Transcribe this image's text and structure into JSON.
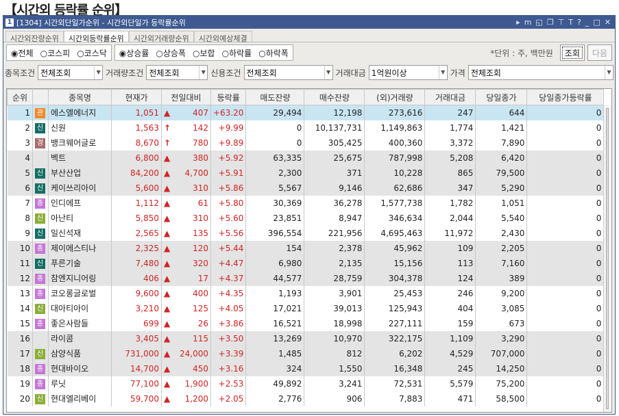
{
  "page_title": "【시간외 등락률 순위】",
  "window": {
    "number": "1",
    "title": "[1304] 시간외단일가순위 - 시간외단일가 등락률순위",
    "icons": [
      "play-icon",
      "m-icon",
      "restore-icon",
      "copy-icon",
      "pin-icon",
      "font-icon",
      "help-icon",
      "minimize-icon",
      "maximize-icon",
      "close-icon"
    ]
  },
  "tabs": [
    {
      "label": "시간외잔량순위"
    },
    {
      "label": "시간외등락률순위",
      "active": true
    },
    {
      "label": "시간외거래량순위"
    },
    {
      "label": "시간외예상체결"
    }
  ],
  "market_radios": [
    {
      "label": "전체",
      "checked": true
    },
    {
      "label": "코스피"
    },
    {
      "label": "코스닥"
    }
  ],
  "sort_radios": [
    {
      "label": "상승률",
      "checked": true
    },
    {
      "label": "상승폭"
    },
    {
      "label": "보합"
    },
    {
      "label": "하락률"
    },
    {
      "label": "하락폭"
    }
  ],
  "unit_text": "*단위 : 주, 백만원",
  "search_button": "조회",
  "next_button": "다음",
  "filters": [
    {
      "label": "종목조건",
      "value": "전체조회"
    },
    {
      "label": "거래량조건",
      "value": "전체조회"
    },
    {
      "label": "신용조건",
      "value": "전체조회"
    },
    {
      "label": "거래대금",
      "value": "1억원이상"
    },
    {
      "label": "가격",
      "value": "전체조회"
    }
  ],
  "columns": [
    "순위",
    "",
    "종목명",
    "현재가",
    "전일대비",
    "등락률",
    "매도잔량",
    "매수잔량",
    "(외)거래량",
    "거래대금",
    "당일종가",
    "당일종가등락률"
  ],
  "badge_colors": {
    "관": "#f08a2a",
    "신": "#136e63",
    "경": "#a86c6c",
    "종": "#c476d6",
    "신2": "#8cae3a"
  },
  "rows": [
    [
      "1",
      "관",
      "에스엘에너지",
      "1,051",
      "▲",
      "407",
      "+63.20",
      "29,494",
      "12,198",
      "273,616",
      "247",
      "644",
      "0"
    ],
    [
      "2",
      "신",
      "신원",
      "1,563",
      "↑",
      "142",
      "+9.99",
      "0",
      "10,137,731",
      "1,149,863",
      "1,774",
      "1,421",
      "0"
    ],
    [
      "3",
      "경",
      "뱅크웨어글로",
      "8,670",
      "↑",
      "780",
      "+9.89",
      "0",
      "305,425",
      "400,360",
      "3,372",
      "7,890",
      "0"
    ],
    [
      "4",
      "",
      "벡트",
      "6,800",
      "▲",
      "380",
      "+5.92",
      "63,335",
      "25,675",
      "787,998",
      "5,208",
      "6,420",
      "0"
    ],
    [
      "5",
      "신",
      "부산산업",
      "84,200",
      "▲",
      "4,700",
      "+5.91",
      "2,300",
      "371",
      "10,228",
      "865",
      "79,500",
      "0"
    ],
    [
      "6",
      "신",
      "케이쓰리아이",
      "5,600",
      "▲",
      "310",
      "+5.86",
      "5,567",
      "9,146",
      "62,686",
      "347",
      "5,290",
      "0"
    ],
    [
      "7",
      "종",
      "인디에프",
      "1,112",
      "▲",
      "61",
      "+5.80",
      "30,369",
      "36,278",
      "1,577,738",
      "1,782",
      "1,051",
      "0"
    ],
    [
      "8",
      "신2",
      "아난티",
      "5,850",
      "▲",
      "310",
      "+5.60",
      "23,851",
      "8,947",
      "346,634",
      "2,044",
      "5,540",
      "0"
    ],
    [
      "9",
      "신",
      "일신석재",
      "2,565",
      "▲",
      "135",
      "+5.56",
      "396,554",
      "221,956",
      "4,695,463",
      "11,972",
      "2,430",
      "0"
    ],
    [
      "10",
      "종",
      "제이에스티나",
      "2,325",
      "▲",
      "120",
      "+5.44",
      "154",
      "2,378",
      "45,962",
      "109",
      "2,205",
      "0"
    ],
    [
      "11",
      "신",
      "푸른기술",
      "7,480",
      "▲",
      "320",
      "+4.47",
      "6,980",
      "2,135",
      "15,156",
      "113",
      "7,160",
      "0"
    ],
    [
      "12",
      "종",
      "참엔지니어링",
      "406",
      "▲",
      "17",
      "+4.37",
      "44,577",
      "28,759",
      "304,378",
      "124",
      "389",
      "0"
    ],
    [
      "13",
      "종",
      "코오롱글로벌",
      "9,600",
      "▲",
      "400",
      "+4.35",
      "1,193",
      "3,901",
      "25,453",
      "246",
      "9,200",
      "0"
    ],
    [
      "14",
      "신2",
      "대아티아이",
      "3,210",
      "▲",
      "125",
      "+4.05",
      "17,021",
      "39,013",
      "125,943",
      "404",
      "3,085",
      "0"
    ],
    [
      "15",
      "종",
      "좋은사람들",
      "699",
      "▲",
      "26",
      "+3.86",
      "16,521",
      "18,998",
      "227,111",
      "159",
      "673",
      "0"
    ],
    [
      "16",
      "",
      "라이콤",
      "3,405",
      "▲",
      "115",
      "+3.50",
      "13,269",
      "10,970",
      "322,175",
      "1,109",
      "3,290",
      "0"
    ],
    [
      "17",
      "신2",
      "삼양식품",
      "731,000",
      "▲",
      "24,000",
      "+3.39",
      "1,485",
      "812",
      "6,202",
      "4,529",
      "707,000",
      "0"
    ],
    [
      "18",
      "종",
      "현대바이오",
      "14,700",
      "▲",
      "450",
      "+3.16",
      "324",
      "1,550",
      "16,348",
      "245",
      "14,250",
      "0"
    ],
    [
      "19",
      "종",
      "루닛",
      "77,100",
      "▲",
      "1,900",
      "+2.53",
      "49,892",
      "3,241",
      "72,531",
      "5,579",
      "75,200",
      "0"
    ],
    [
      "20",
      "신2",
      "현대엘리베이",
      "59,700",
      "▲",
      "1,200",
      "+2.05",
      "2,776",
      "906",
      "7,883",
      "471",
      "58,500",
      "0"
    ]
  ]
}
